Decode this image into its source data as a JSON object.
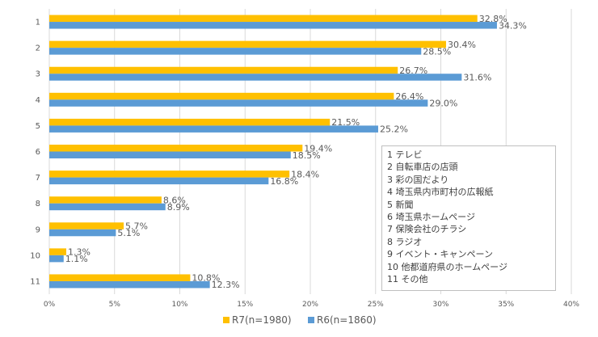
{
  "chart_data": {
    "type": "bar",
    "orientation": "horizontal",
    "title": "",
    "xlabel": "",
    "ylabel": "",
    "categories": [
      "1",
      "2",
      "3",
      "4",
      "5",
      "6",
      "7",
      "8",
      "9",
      "10",
      "11"
    ],
    "series": [
      {
        "name": "R7(n=1980)",
        "color": "#FFC000",
        "values": [
          32.8,
          30.4,
          26.7,
          26.4,
          21.5,
          19.4,
          18.4,
          8.6,
          5.7,
          1.3,
          10.8
        ],
        "labels": [
          "32.8%",
          "30.4%",
          "26.7%",
          "26.4%",
          "21.5%",
          "19.4%",
          "18.4%",
          "8.6%",
          "5.7%",
          "1.3%",
          "10.8%"
        ]
      },
      {
        "name": "R6(n=1860)",
        "color": "#5B9BD5",
        "values": [
          34.3,
          28.5,
          31.6,
          29.0,
          25.2,
          18.5,
          16.8,
          8.9,
          5.1,
          1.1,
          12.3
        ],
        "labels": [
          "34.3%",
          "28.5%",
          "31.6%",
          "29.0%",
          "25.2%",
          "18.5%",
          "16.8%",
          "8.9%",
          "5.1%",
          "1.1%",
          "12.3%"
        ]
      }
    ],
    "xlim": [
      0,
      40
    ],
    "xticks": [
      0,
      5,
      10,
      15,
      20,
      25,
      30,
      35,
      40
    ],
    "xtick_labels": [
      "0%",
      "5%",
      "10%",
      "15%",
      "20%",
      "25%",
      "30%",
      "35%",
      "40%"
    ],
    "grid": true,
    "legend_position": "bottom"
  },
  "notes_box": [
    "1 テレビ",
    "2 自転車店の店頭",
    "3 彩の国だより",
    "4 埼玉県内市町村の広報紙",
    "5 新聞",
    "6 埼玉県ホームページ",
    "7 保険会社のチラシ",
    "8 ラジオ",
    "9 イベント・キャンペーン",
    "10 他都道府県のホームページ",
    "11 その他"
  ]
}
